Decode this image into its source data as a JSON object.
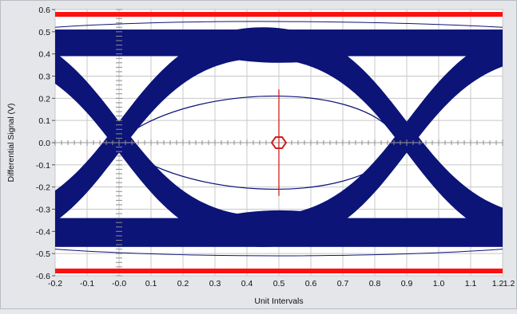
{
  "chart_data": {
    "type": "eye-diagram",
    "xlabel": "Unit Intervals",
    "ylabel": "Differential Signal (V)",
    "xlim": [
      -0.2,
      1.2
    ],
    "ylim": [
      -0.6,
      0.6
    ],
    "x_ticks": [
      "-0.2",
      "-0.1",
      "-0.0",
      "0.1",
      "0.2",
      "0.3",
      "0.4",
      "0.5",
      "0.6",
      "0.7",
      "0.8",
      "0.9",
      "1.0",
      "1.1",
      "1.2",
      "1.2"
    ],
    "y_ticks": [
      "0.6",
      "0.5",
      "0.4",
      "0.3",
      "0.2",
      "0.1",
      "0.0",
      "-0.1",
      "-0.2",
      "-0.3",
      "-0.4",
      "-0.5",
      "-0.6"
    ],
    "grid": true,
    "bands": {
      "high": {
        "upper": 0.51,
        "lower": 0.39
      },
      "low": {
        "upper": -0.34,
        "lower": -0.47
      }
    },
    "crossings": [
      0.0,
      0.9
    ],
    "crossing_level": 0.0,
    "eye_opening": {
      "top": 0.24,
      "bottom": -0.24,
      "center_x": 0.5
    },
    "mask_limits": {
      "upper": 0.6,
      "lower": -0.6
    },
    "colors": {
      "trace": "#0c1478",
      "mask": "#ff1010",
      "plot_background": "#ffffff",
      "grid": "#c8c8c8",
      "marker": "#cc2222"
    }
  }
}
